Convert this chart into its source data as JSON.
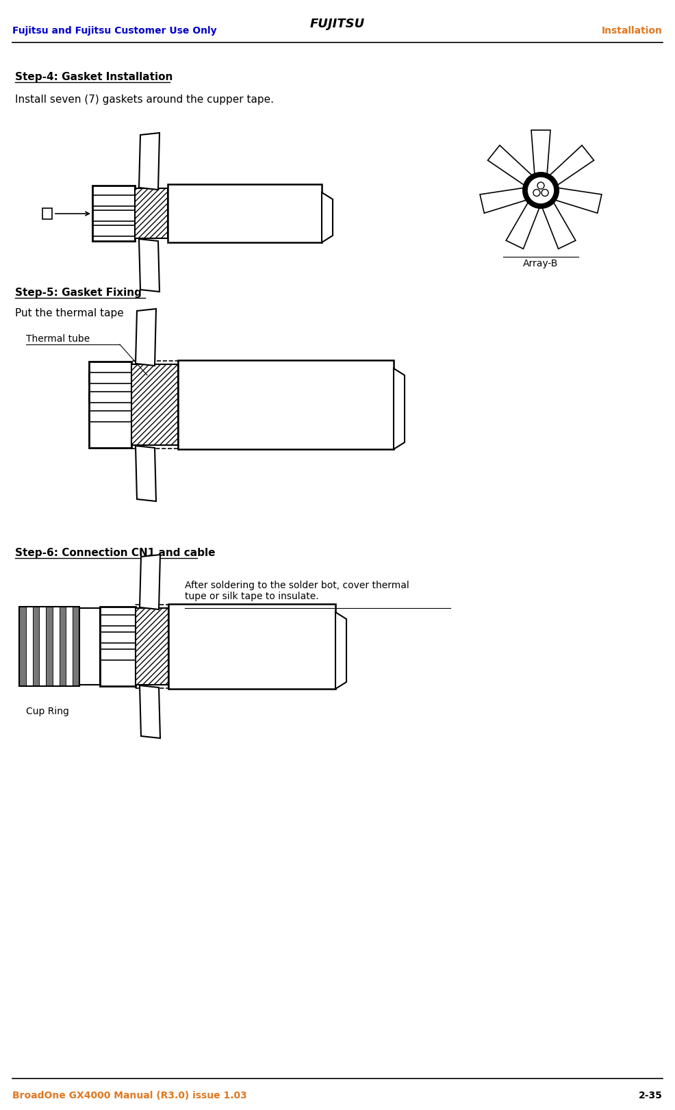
{
  "page_width": 9.86,
  "page_height": 16.21,
  "bg_color": "#ffffff",
  "header_left_text": "Fujitsu and Fujitsu Customer Use Only",
  "header_left_color": "#0000cc",
  "header_center_text": "FUJITSU",
  "header_right_text": "Installation",
  "header_right_color": "#e07820",
  "footer_left_text": "BroadOne GX4000 Manual (R3.0) issue 1.03",
  "footer_left_color": "#e07820",
  "footer_right_text": "2-35",
  "step4_title": "Step-4: Gasket Installation",
  "step4_body": "Install seven (7) gaskets around the cupper tape.",
  "step5_title": "Step-5: Gasket Fixing",
  "step5_body": "Put the thermal tape",
  "step5_label": "Thermal tube",
  "step6_title": "Step-6: Connection CN1 and cable",
  "step6_label1": "Cup Ring",
  "step6_label2": "After soldering to the solder bot, cover thermal\ntupe or silk tape to insulate.",
  "array_b_label": "Array-B"
}
